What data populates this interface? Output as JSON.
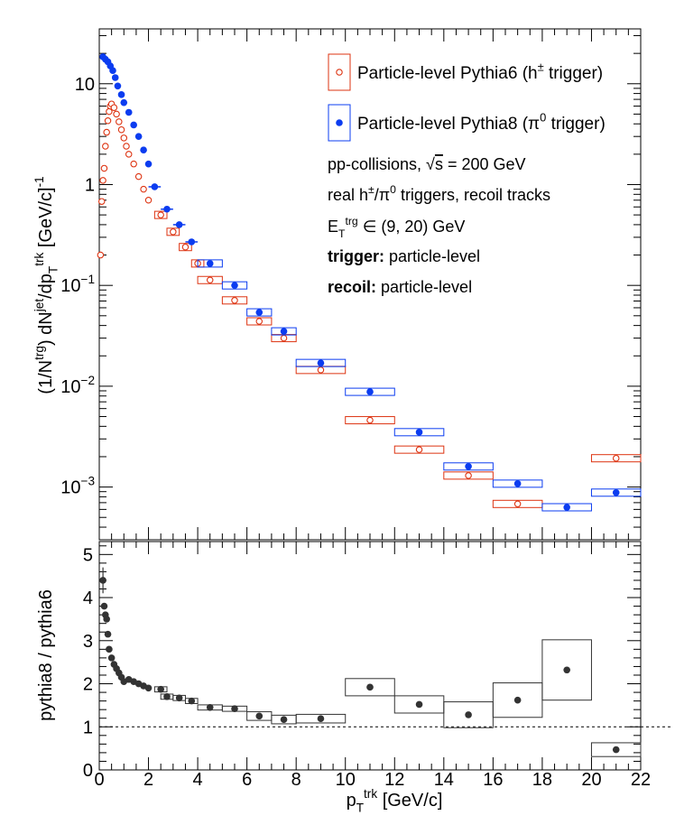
{
  "chart_data": [
    {
      "type": "scatter",
      "panel": "top",
      "xlabel": {
        "main": "p",
        "sub": "T",
        "sup": "trk",
        "unit": " [GeV/c]"
      },
      "ylabel_parts": [
        {
          "t": "(1/N",
          "s": "n"
        },
        {
          "t": "trg",
          "s": "sup"
        },
        {
          "t": ") dN",
          "s": "n"
        },
        {
          "t": "jet",
          "s": "sup"
        },
        {
          "t": "/dp",
          "s": "n"
        },
        {
          "t": "T",
          "s": "sub"
        },
        {
          "t": "trk",
          "s": "sup"
        },
        {
          "t": " [GeV/c]",
          "s": "n"
        },
        {
          "t": "-1",
          "s": "sup"
        }
      ],
      "xlim": [
        0,
        22
      ],
      "ylim": [
        0.0003,
        35
      ],
      "yscale": "log",
      "yticks": [
        {
          "v": 0.001,
          "base": "10",
          "exp": "−3"
        },
        {
          "v": 0.01,
          "base": "10",
          "exp": "−2"
        },
        {
          "v": 0.1,
          "base": "10",
          "exp": "−1"
        },
        {
          "v": 1,
          "base": "1",
          "exp": ""
        },
        {
          "v": 10,
          "base": "10",
          "exp": ""
        }
      ],
      "legend": {
        "placement": "top-right",
        "entries": [
          {
            "series": "pythia6",
            "parts": [
              {
                "t": "Particle-level Pythia6 (h",
                "s": "n"
              },
              {
                "t": "±",
                "s": "sup"
              },
              {
                "t": " trigger)",
                "s": "n"
              }
            ]
          },
          {
            "series": "pythia8",
            "parts": [
              {
                "t": "Particle-level Pythia8 (π",
                "s": "n"
              },
              {
                "t": "0",
                "s": "sup"
              },
              {
                "t": " trigger)",
                "s": "n"
              }
            ]
          }
        ],
        "notes": [
          [
            {
              "t": "pp-collisions, ",
              "s": "n"
            },
            {
              "t": "√",
              "s": "n"
            },
            {
              "t": "s",
              "s": "over"
            },
            {
              "t": " = 200 GeV",
              "s": "n"
            }
          ],
          [
            {
              "t": "real h",
              "s": "n"
            },
            {
              "t": "±",
              "s": "sup"
            },
            {
              "t": "/π",
              "s": "n"
            },
            {
              "t": "0",
              "s": "sup"
            },
            {
              "t": " triggers, recoil tracks",
              "s": "n"
            }
          ],
          [
            {
              "t": "E",
              "s": "n"
            },
            {
              "t": "T",
              "s": "sub"
            },
            {
              "t": "trg",
              "s": "sup"
            },
            {
              "t": " ∈ (9, 20) GeV",
              "s": "n"
            }
          ],
          [
            {
              "t": "trigger:",
              "s": "b"
            },
            {
              "t": " particle-level",
              "s": "n"
            }
          ],
          [
            {
              "t": "recoil:",
              "s": "b"
            },
            {
              "t": " particle-level",
              "s": "n"
            }
          ]
        ]
      },
      "series": [
        {
          "name": "Particle-level Pythia6 (h± trigger)",
          "key": "pythia6",
          "color": "#dd3311",
          "marker": "open-circle",
          "points": [
            {
              "x": 0.05,
              "y": 0.2
            },
            {
              "x": 0.1,
              "y": 0.68
            },
            {
              "x": 0.15,
              "y": 1.1
            },
            {
              "x": 0.2,
              "y": 1.45
            },
            {
              "x": 0.25,
              "y": 2.4
            },
            {
              "x": 0.3,
              "y": 3.3
            },
            {
              "x": 0.35,
              "y": 4.3
            },
            {
              "x": 0.4,
              "y": 5.3
            },
            {
              "x": 0.45,
              "y": 6.0
            },
            {
              "x": 0.5,
              "y": 6.3
            },
            {
              "x": 0.6,
              "y": 5.8
            },
            {
              "x": 0.7,
              "y": 5.0
            },
            {
              "x": 0.8,
              "y": 4.2
            },
            {
              "x": 0.9,
              "y": 3.5
            },
            {
              "x": 1.0,
              "y": 2.9
            },
            {
              "x": 1.1,
              "y": 2.4
            },
            {
              "x": 1.2,
              "y": 2.0
            },
            {
              "x": 1.4,
              "y": 1.6
            },
            {
              "x": 1.6,
              "y": 1.2
            },
            {
              "x": 1.8,
              "y": 0.9
            },
            {
              "x": 2.0,
              "y": 0.7
            },
            {
              "x": 2.5,
              "y": 0.5,
              "xw": 0.25,
              "box": true
            },
            {
              "x": 3.0,
              "y": 0.34,
              "xw": 0.25,
              "box": true
            },
            {
              "x": 3.5,
              "y": 0.24,
              "xw": 0.25,
              "box": true
            },
            {
              "x": 4.0,
              "y": 0.165,
              "xw": 0.25,
              "box": true
            },
            {
              "x": 4.5,
              "y": 0.113,
              "xw": 0.5,
              "box": true
            },
            {
              "x": 5.5,
              "y": 0.071,
              "xw": 0.5,
              "box": true
            },
            {
              "x": 6.5,
              "y": 0.044,
              "xw": 0.5,
              "box": true
            },
            {
              "x": 7.5,
              "y": 0.03,
              "xw": 0.5,
              "box": true
            },
            {
              "x": 9.0,
              "y": 0.0145,
              "xw": 1.0,
              "box": true
            },
            {
              "x": 11.0,
              "y": 0.0046,
              "xw": 1.0,
              "box": true
            },
            {
              "x": 13.0,
              "y": 0.00235,
              "xw": 1.0,
              "box": true
            },
            {
              "x": 15.0,
              "y": 0.0013,
              "xw": 1.0,
              "box": true
            },
            {
              "x": 17.0,
              "y": 0.00068,
              "xw": 1.0,
              "box": true
            },
            {
              "x": 21.0,
              "y": 0.00193,
              "xw": 1.0,
              "box": true
            }
          ]
        },
        {
          "name": "Particle-level Pythia8 (π0 trigger)",
          "key": "pythia8",
          "color": "#0b3cf0",
          "marker": "filled-circle",
          "points": [
            {
              "x": 0.15,
              "y": 18.5
            },
            {
              "x": 0.25,
              "y": 17.5
            },
            {
              "x": 0.35,
              "y": 16.5
            },
            {
              "x": 0.45,
              "y": 15.0
            },
            {
              "x": 0.55,
              "y": 13.5
            },
            {
              "x": 0.65,
              "y": 11.5
            },
            {
              "x": 0.75,
              "y": 9.5
            },
            {
              "x": 0.9,
              "y": 7.8
            },
            {
              "x": 1.0,
              "y": 6.5
            },
            {
              "x": 1.2,
              "y": 5.2
            },
            {
              "x": 1.4,
              "y": 3.9
            },
            {
              "x": 1.6,
              "y": 3.0
            },
            {
              "x": 1.8,
              "y": 2.2
            },
            {
              "x": 2.0,
              "y": 1.6
            },
            {
              "x": 2.25,
              "y": 0.95,
              "xw": 0.25
            },
            {
              "x": 2.75,
              "y": 0.57,
              "xw": 0.25
            },
            {
              "x": 3.25,
              "y": 0.4,
              "xw": 0.25
            },
            {
              "x": 3.75,
              "y": 0.27,
              "xw": 0.25
            },
            {
              "x": 4.5,
              "y": 0.165,
              "xw": 0.5,
              "box": true
            },
            {
              "x": 5.5,
              "y": 0.1,
              "xw": 0.5,
              "box": true
            },
            {
              "x": 6.5,
              "y": 0.054,
              "xw": 0.5,
              "box": true
            },
            {
              "x": 7.5,
              "y": 0.035,
              "xw": 0.5,
              "box": true
            },
            {
              "x": 9.0,
              "y": 0.017,
              "xw": 1.0,
              "box": true
            },
            {
              "x": 11.0,
              "y": 0.0088,
              "xw": 1.0,
              "box": true
            },
            {
              "x": 13.0,
              "y": 0.0035,
              "xw": 1.0,
              "box": true
            },
            {
              "x": 15.0,
              "y": 0.0016,
              "xw": 1.0,
              "box": true
            },
            {
              "x": 17.0,
              "y": 0.00108,
              "xw": 1.0,
              "box": true
            },
            {
              "x": 19.0,
              "y": 0.00063,
              "xw": 1.0,
              "box": true
            },
            {
              "x": 21.0,
              "y": 0.00088,
              "xw": 1.0,
              "box": true
            }
          ]
        }
      ]
    },
    {
      "type": "scatter",
      "panel": "bottom",
      "ylabel": "pythia8 / pythia6",
      "xlim": [
        0,
        22
      ],
      "ylim": [
        0,
        5.3
      ],
      "xticks": [
        0,
        2,
        4,
        6,
        8,
        10,
        12,
        14,
        16,
        18,
        20,
        22
      ],
      "yticks": [
        0,
        1,
        2,
        3,
        4,
        5
      ],
      "reference_line": 1.0,
      "series": [
        {
          "name": "",
          "key": "ratio",
          "color": "#333333",
          "marker": "filled-circle",
          "points": [
            {
              "x": 0.15,
              "y": 4.4,
              "err": 0.3
            },
            {
              "x": 0.2,
              "y": 3.8
            },
            {
              "x": 0.25,
              "y": 3.6
            },
            {
              "x": 0.3,
              "y": 3.5
            },
            {
              "x": 0.35,
              "y": 3.15
            },
            {
              "x": 0.4,
              "y": 2.8
            },
            {
              "x": 0.5,
              "y": 2.6
            },
            {
              "x": 0.6,
              "y": 2.45
            },
            {
              "x": 0.7,
              "y": 2.35
            },
            {
              "x": 0.8,
              "y": 2.25
            },
            {
              "x": 0.9,
              "y": 2.15
            },
            {
              "x": 1.0,
              "y": 2.05
            },
            {
              "x": 1.2,
              "y": 2.1
            },
            {
              "x": 1.4,
              "y": 2.05
            },
            {
              "x": 1.6,
              "y": 2.0
            },
            {
              "x": 1.8,
              "y": 1.95
            },
            {
              "x": 2.0,
              "y": 1.9
            },
            {
              "x": 2.5,
              "y": 1.87,
              "xw": 0.25,
              "box": true,
              "h": 0.06
            },
            {
              "x": 2.75,
              "y": 1.7,
              "xw": 0.25,
              "box": true,
              "h": 0.06
            },
            {
              "x": 3.25,
              "y": 1.67,
              "xw": 0.25,
              "box": true,
              "h": 0.06
            },
            {
              "x": 3.75,
              "y": 1.6,
              "xw": 0.25,
              "box": true,
              "h": 0.06
            },
            {
              "x": 4.5,
              "y": 1.45,
              "xw": 0.5,
              "box": true,
              "h": 0.06
            },
            {
              "x": 5.5,
              "y": 1.42,
              "xw": 0.5,
              "box": true,
              "h": 0.06
            },
            {
              "x": 6.5,
              "y": 1.25,
              "xw": 0.5,
              "box": true,
              "h": 0.1
            },
            {
              "x": 7.5,
              "y": 1.17,
              "xw": 0.5,
              "box": true,
              "h": 0.1
            },
            {
              "x": 9.0,
              "y": 1.19,
              "xw": 1.0,
              "box": true,
              "h": 0.1
            },
            {
              "x": 11.0,
              "y": 1.92,
              "xw": 1.0,
              "box": true,
              "h": 0.2
            },
            {
              "x": 13.0,
              "y": 1.52,
              "xw": 1.0,
              "box": true,
              "h": 0.2
            },
            {
              "x": 15.0,
              "y": 1.28,
              "xw": 1.0,
              "box": true,
              "h": 0.3
            },
            {
              "x": 17.0,
              "y": 1.62,
              "xw": 1.0,
              "box": true,
              "h": 0.4
            },
            {
              "x": 19.0,
              "y": 2.32,
              "xw": 1.0,
              "box": true,
              "h": 0.7
            },
            {
              "x": 21.0,
              "y": 0.47,
              "xw": 1.0,
              "box": true,
              "h": 0.16
            }
          ]
        }
      ]
    }
  ]
}
